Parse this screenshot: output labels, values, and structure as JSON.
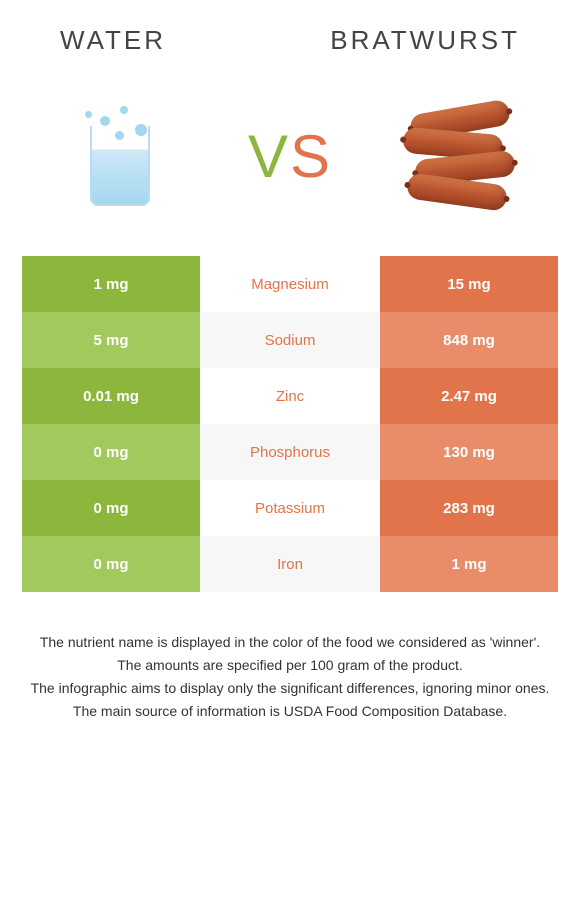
{
  "header": {
    "left_title": "Water",
    "right_title": "Bratwurst"
  },
  "vs": {
    "v": "V",
    "s": "S"
  },
  "colors": {
    "left_primary": "#8cb63c",
    "left_alt": "#a2c95e",
    "right_primary": "#e2744b",
    "right_alt": "#e98c6a",
    "background": "#ffffff"
  },
  "table": {
    "type": "comparison-table",
    "rows": [
      {
        "left": "1 mg",
        "label": "Magnesium",
        "right": "15 mg",
        "winner": "right"
      },
      {
        "left": "5 mg",
        "label": "Sodium",
        "right": "848 mg",
        "winner": "right"
      },
      {
        "left": "0.01 mg",
        "label": "Zinc",
        "right": "2.47 mg",
        "winner": "right"
      },
      {
        "left": "0 mg",
        "label": "Phosphorus",
        "right": "130 mg",
        "winner": "right"
      },
      {
        "left": "0 mg",
        "label": "Potassium",
        "right": "283 mg",
        "winner": "right"
      },
      {
        "left": "0 mg",
        "label": "Iron",
        "right": "1 mg",
        "winner": "right"
      }
    ]
  },
  "footnotes": [
    "The nutrient name is displayed in the color of the food we considered as 'winner'.",
    "The amounts are specified per 100 gram of the product.",
    "The infographic aims to display only the significant differences, ignoring minor ones.",
    "The main source of information is USDA Food Composition Database."
  ]
}
